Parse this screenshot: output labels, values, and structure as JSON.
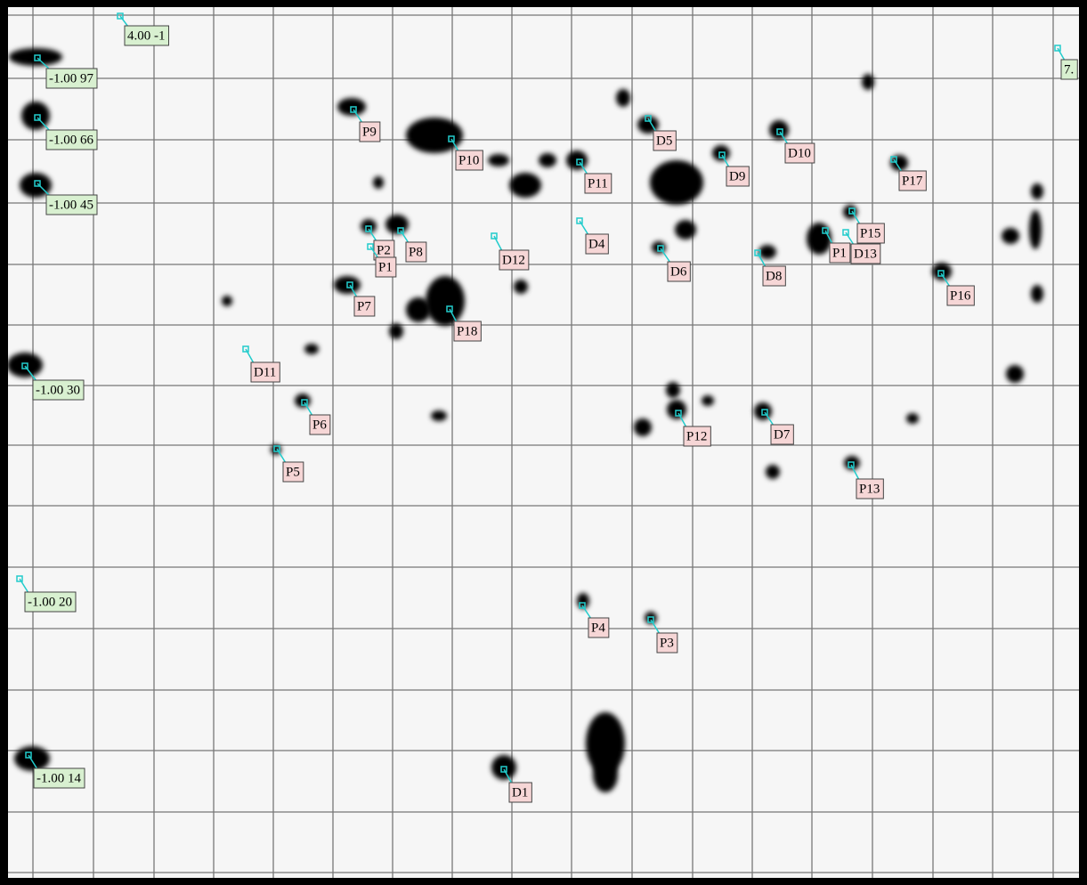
{
  "reference_labels": [
    "4.00 -1",
    "-1.00 97",
    "-1.00 66",
    "-1.00 45",
    "-1.00 30",
    "-1.00 20",
    "-1.00 14",
    "7."
  ],
  "spot_labels": [
    "P9",
    "P10",
    "D5",
    "D10",
    "D9",
    "P11",
    "P17",
    "P2",
    "P8",
    "P1",
    "D12",
    "D4",
    "D6",
    "D8",
    "P1",
    "P15",
    "D13",
    "P16",
    "P7",
    "P18",
    "D11",
    "P6",
    "P5",
    "P12",
    "D7",
    "P13",
    "P4",
    "P3",
    "D1"
  ]
}
